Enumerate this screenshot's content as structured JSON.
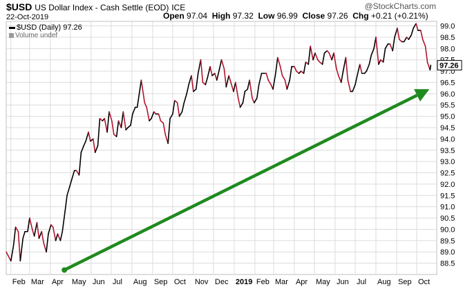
{
  "header": {
    "ticker": "$USD",
    "description": "US Dollar Index - Cash Settle (EOD)",
    "exchange": "ICE",
    "date": "22-Oct-2019",
    "open_label": "Open",
    "open": "97.04",
    "high_label": "High",
    "high": "97.32",
    "low_label": "Low",
    "low": "96.99",
    "close_label": "Close",
    "close": "97.26",
    "chg_label": "Chg",
    "chg": "+0.21 (+0.21%)",
    "brand": "@StockCharts.com"
  },
  "legend": {
    "series_label": "$USD (Daily)",
    "series_value": "97.26",
    "volume_label": "Volume undef"
  },
  "colors": {
    "up": "#000000",
    "down": "#b3122c",
    "arrow": "#1f8a1f",
    "grid": "#dcdcdc",
    "last_box": "#ffffff"
  },
  "chart_data": {
    "type": "line",
    "title": "$USD US Dollar Index - Cash Settle (EOD)",
    "ylabel": "",
    "xlabel": "",
    "ylim": [
      88.0,
      99.2
    ],
    "yticks": [
      88.5,
      89.0,
      89.5,
      90.0,
      90.5,
      91.0,
      91.5,
      92.0,
      92.5,
      93.0,
      93.5,
      94.0,
      94.5,
      95.0,
      95.5,
      96.0,
      96.5,
      97.0,
      97.5,
      98.0,
      98.5,
      99.0
    ],
    "xticks": [
      {
        "label": "Feb",
        "date": "2018-02-01",
        "bold": false
      },
      {
        "label": "Mar",
        "date": "2018-03-01",
        "bold": false
      },
      {
        "label": "Apr",
        "date": "2018-04-01",
        "bold": false
      },
      {
        "label": "May",
        "date": "2018-05-01",
        "bold": false
      },
      {
        "label": "Jun",
        "date": "2018-06-01",
        "bold": false
      },
      {
        "label": "Jul",
        "date": "2018-07-01",
        "bold": false
      },
      {
        "label": "Aug",
        "date": "2018-08-01",
        "bold": false
      },
      {
        "label": "Sep",
        "date": "2018-09-01",
        "bold": false
      },
      {
        "label": "Oct",
        "date": "2018-10-01",
        "bold": false
      },
      {
        "label": "Nov",
        "date": "2018-11-01",
        "bold": false
      },
      {
        "label": "Dec",
        "date": "2018-12-01",
        "bold": false
      },
      {
        "label": "2019",
        "date": "2019-01-01",
        "bold": true
      },
      {
        "label": "Feb",
        "date": "2019-02-01",
        "bold": false
      },
      {
        "label": "Mar",
        "date": "2019-03-01",
        "bold": false
      },
      {
        "label": "Apr",
        "date": "2019-04-01",
        "bold": false
      },
      {
        "label": "May",
        "date": "2019-05-01",
        "bold": false
      },
      {
        "label": "Jun",
        "date": "2019-06-01",
        "bold": false
      },
      {
        "label": "Jul",
        "date": "2019-07-01",
        "bold": false
      },
      {
        "label": "Aug",
        "date": "2019-08-01",
        "bold": false
      },
      {
        "label": "Sep",
        "date": "2019-09-01",
        "bold": false
      },
      {
        "label": "Oct",
        "date": "2019-10-01",
        "bold": false
      }
    ],
    "xrange": [
      "2018-01-25",
      "2019-10-31"
    ],
    "last_value": "97.26",
    "series": [
      {
        "name": "$USD (Daily)",
        "points": [
          [
            "2018-01-25",
            89.0
          ],
          [
            "2018-02-01",
            88.6
          ],
          [
            "2018-02-05",
            89.3
          ],
          [
            "2018-02-08",
            90.1
          ],
          [
            "2018-02-12",
            89.9
          ],
          [
            "2018-02-15",
            88.6
          ],
          [
            "2018-02-19",
            89.6
          ],
          [
            "2018-02-22",
            89.9
          ],
          [
            "2018-02-26",
            89.9
          ],
          [
            "2018-03-01",
            90.5
          ],
          [
            "2018-03-05",
            90.0
          ],
          [
            "2018-03-08",
            89.7
          ],
          [
            "2018-03-12",
            90.3
          ],
          [
            "2018-03-15",
            89.6
          ],
          [
            "2018-03-19",
            89.9
          ],
          [
            "2018-03-22",
            89.4
          ],
          [
            "2018-03-26",
            89.0
          ],
          [
            "2018-03-29",
            89.8
          ],
          [
            "2018-04-02",
            90.2
          ],
          [
            "2018-04-05",
            90.1
          ],
          [
            "2018-04-09",
            89.5
          ],
          [
            "2018-04-12",
            89.8
          ],
          [
            "2018-04-16",
            89.5
          ],
          [
            "2018-04-19",
            89.9
          ],
          [
            "2018-04-23",
            90.8
          ],
          [
            "2018-04-26",
            91.5
          ],
          [
            "2018-04-30",
            91.9
          ],
          [
            "2018-05-03",
            92.2
          ],
          [
            "2018-05-07",
            92.6
          ],
          [
            "2018-05-10",
            92.6
          ],
          [
            "2018-05-14",
            92.4
          ],
          [
            "2018-05-17",
            93.4
          ],
          [
            "2018-05-21",
            93.7
          ],
          [
            "2018-05-24",
            93.9
          ],
          [
            "2018-05-28",
            94.3
          ],
          [
            "2018-05-31",
            93.9
          ],
          [
            "2018-06-04",
            94.0
          ],
          [
            "2018-06-07",
            93.4
          ],
          [
            "2018-06-11",
            93.7
          ],
          [
            "2018-06-14",
            94.9
          ],
          [
            "2018-06-18",
            94.8
          ],
          [
            "2018-06-21",
            94.9
          ],
          [
            "2018-06-25",
            94.3
          ],
          [
            "2018-06-28",
            95.2
          ],
          [
            "2018-07-02",
            94.8
          ],
          [
            "2018-07-05",
            94.2
          ],
          [
            "2018-07-09",
            94.1
          ],
          [
            "2018-07-12",
            94.8
          ],
          [
            "2018-07-16",
            94.5
          ],
          [
            "2018-07-19",
            95.2
          ],
          [
            "2018-07-23",
            94.4
          ],
          [
            "2018-07-26",
            94.5
          ],
          [
            "2018-07-30",
            94.6
          ],
          [
            "2018-08-02",
            95.1
          ],
          [
            "2018-08-06",
            95.4
          ],
          [
            "2018-08-09",
            95.4
          ],
          [
            "2018-08-13",
            96.2
          ],
          [
            "2018-08-15",
            96.6
          ],
          [
            "2018-08-20",
            95.6
          ],
          [
            "2018-08-23",
            95.4
          ],
          [
            "2018-08-27",
            94.8
          ],
          [
            "2018-08-30",
            94.9
          ],
          [
            "2018-09-03",
            95.2
          ],
          [
            "2018-09-06",
            95.1
          ],
          [
            "2018-09-10",
            95.1
          ],
          [
            "2018-09-13",
            94.8
          ],
          [
            "2018-09-17",
            94.7
          ],
          [
            "2018-09-20",
            94.2
          ],
          [
            "2018-09-24",
            93.8
          ],
          [
            "2018-09-27",
            94.9
          ],
          [
            "2018-10-01",
            95.1
          ],
          [
            "2018-10-04",
            95.7
          ],
          [
            "2018-10-08",
            95.6
          ],
          [
            "2018-10-11",
            95.0
          ],
          [
            "2018-10-15",
            95.2
          ],
          [
            "2018-10-18",
            95.6
          ],
          [
            "2018-10-22",
            96.0
          ],
          [
            "2018-10-25",
            96.4
          ],
          [
            "2018-10-29",
            96.8
          ],
          [
            "2018-11-01",
            96.1
          ],
          [
            "2018-11-05",
            96.2
          ],
          [
            "2018-11-08",
            96.9
          ],
          [
            "2018-11-12",
            97.5
          ],
          [
            "2018-11-15",
            96.5
          ],
          [
            "2018-11-19",
            96.4
          ],
          [
            "2018-11-22",
            96.7
          ],
          [
            "2018-11-26",
            97.2
          ],
          [
            "2018-11-29",
            96.8
          ],
          [
            "2018-12-03",
            96.9
          ],
          [
            "2018-12-06",
            96.6
          ],
          [
            "2018-12-10",
            97.1
          ],
          [
            "2018-12-13",
            97.5
          ],
          [
            "2018-12-17",
            97.1
          ],
          [
            "2018-12-20",
            96.3
          ],
          [
            "2018-12-24",
            96.8
          ],
          [
            "2018-12-27",
            96.5
          ],
          [
            "2018-12-31",
            96.1
          ],
          [
            "2019-01-03",
            96.5
          ],
          [
            "2019-01-07",
            95.8
          ],
          [
            "2019-01-10",
            95.4
          ],
          [
            "2019-01-14",
            95.6
          ],
          [
            "2019-01-17",
            96.1
          ],
          [
            "2019-01-21",
            96.2
          ],
          [
            "2019-01-24",
            96.6
          ],
          [
            "2019-01-28",
            95.8
          ],
          [
            "2019-01-31",
            95.6
          ],
          [
            "2019-02-04",
            95.8
          ],
          [
            "2019-02-07",
            96.4
          ],
          [
            "2019-02-11",
            96.9
          ],
          [
            "2019-02-14",
            96.9
          ],
          [
            "2019-02-18",
            96.9
          ],
          [
            "2019-02-21",
            96.6
          ],
          [
            "2019-02-25",
            96.4
          ],
          [
            "2019-02-28",
            96.2
          ],
          [
            "2019-03-04",
            96.9
          ],
          [
            "2019-03-07",
            97.6
          ],
          [
            "2019-03-11",
            97.2
          ],
          [
            "2019-03-14",
            96.8
          ],
          [
            "2019-03-18",
            96.6
          ],
          [
            "2019-03-21",
            96.2
          ],
          [
            "2019-03-25",
            96.6
          ],
          [
            "2019-03-28",
            97.2
          ],
          [
            "2019-04-01",
            97.2
          ],
          [
            "2019-04-04",
            97.0
          ],
          [
            "2019-04-08",
            96.9
          ],
          [
            "2019-04-11",
            97.0
          ],
          [
            "2019-04-15",
            96.9
          ],
          [
            "2019-04-18",
            97.4
          ],
          [
            "2019-04-22",
            97.3
          ],
          [
            "2019-04-25",
            98.1
          ],
          [
            "2019-04-29",
            97.5
          ],
          [
            "2019-05-02",
            97.8
          ],
          [
            "2019-05-06",
            97.5
          ],
          [
            "2019-05-09",
            97.4
          ],
          [
            "2019-05-13",
            97.3
          ],
          [
            "2019-05-16",
            97.8
          ],
          [
            "2019-05-20",
            97.9
          ],
          [
            "2019-05-23",
            97.8
          ],
          [
            "2019-05-27",
            97.5
          ],
          [
            "2019-05-30",
            97.8
          ],
          [
            "2019-06-03",
            97.1
          ],
          [
            "2019-06-06",
            96.8
          ],
          [
            "2019-06-10",
            96.5
          ],
          [
            "2019-06-13",
            97.0
          ],
          [
            "2019-06-17",
            97.6
          ],
          [
            "2019-06-20",
            96.6
          ],
          [
            "2019-06-24",
            96.1
          ],
          [
            "2019-06-27",
            96.1
          ],
          [
            "2019-07-01",
            96.4
          ],
          [
            "2019-07-04",
            96.8
          ],
          [
            "2019-07-08",
            97.3
          ],
          [
            "2019-07-11",
            96.9
          ],
          [
            "2019-07-15",
            96.9
          ],
          [
            "2019-07-18",
            97.0
          ],
          [
            "2019-07-22",
            97.3
          ],
          [
            "2019-07-25",
            97.7
          ],
          [
            "2019-07-29",
            98.0
          ],
          [
            "2019-08-01",
            98.5
          ],
          [
            "2019-08-05",
            97.3
          ],
          [
            "2019-08-08",
            97.5
          ],
          [
            "2019-08-12",
            97.4
          ],
          [
            "2019-08-15",
            98.0
          ],
          [
            "2019-08-19",
            98.2
          ],
          [
            "2019-08-22",
            98.2
          ],
          [
            "2019-08-26",
            97.9
          ],
          [
            "2019-08-29",
            98.5
          ],
          [
            "2019-09-02",
            98.9
          ],
          [
            "2019-09-05",
            98.4
          ],
          [
            "2019-09-09",
            98.3
          ],
          [
            "2019-09-12",
            98.3
          ],
          [
            "2019-09-16",
            98.5
          ],
          [
            "2019-09-19",
            98.4
          ],
          [
            "2019-09-23",
            98.6
          ],
          [
            "2019-09-26",
            98.9
          ],
          [
            "2019-09-30",
            99.1
          ],
          [
            "2019-10-03",
            98.8
          ],
          [
            "2019-10-07",
            98.8
          ],
          [
            "2019-10-10",
            98.4
          ],
          [
            "2019-10-14",
            98.1
          ],
          [
            "2019-10-17",
            97.4
          ],
          [
            "2019-10-21",
            97.05
          ],
          [
            "2019-10-22",
            97.26
          ]
        ]
      }
    ],
    "annotations": [
      {
        "type": "arrow",
        "from": [
          "2018-04-22",
          88.2
        ],
        "to": [
          "2019-10-20",
          96.2
        ],
        "color": "#1f8a1f"
      }
    ]
  }
}
